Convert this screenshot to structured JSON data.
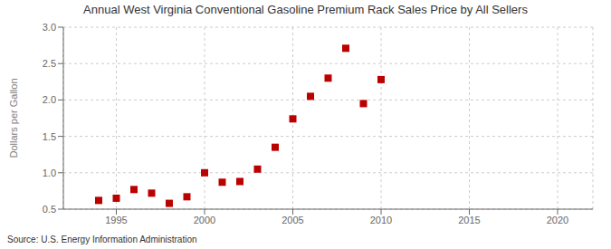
{
  "chart_data": {
    "type": "scatter",
    "title": "Annual West Virginia Conventional Gasoline Premium Rack Sales Price by All Sellers",
    "ylabel": "Dollars per Gallon",
    "annotations": [
      "Source: U.S. Energy Information Administration"
    ],
    "x": [
      1994,
      1995,
      1996,
      1997,
      1998,
      1999,
      2000,
      2001,
      2002,
      2003,
      2004,
      2005,
      2006,
      2007,
      2008,
      2009,
      2010
    ],
    "values": [
      0.62,
      0.65,
      0.77,
      0.72,
      0.58,
      0.67,
      1.0,
      0.87,
      0.88,
      1.05,
      1.35,
      1.74,
      2.05,
      2.3,
      2.71,
      1.95,
      2.28
    ],
    "color": "#bb0000",
    "marker": "square",
    "xlim": [
      1992,
      2022
    ],
    "ylim": [
      0.5,
      3.0
    ],
    "xticks": [
      1995,
      2000,
      2005,
      2010,
      2015,
      2020
    ],
    "yticks": [
      0.5,
      {
        "value": 1,
        "label": "1.0"
      },
      1.5,
      {
        "value": 2,
        "label": "2.0"
      },
      2.5,
      {
        "value": 3,
        "label": "3.0"
      }
    ],
    "grid": true
  }
}
